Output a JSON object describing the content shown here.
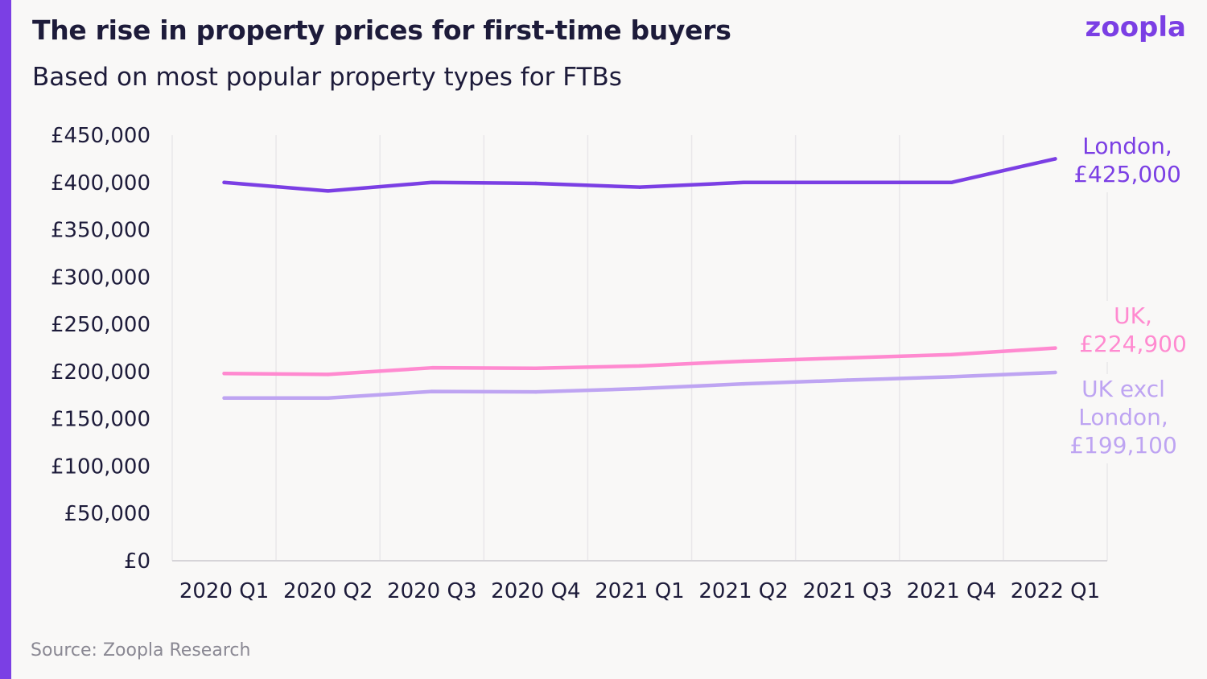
{
  "header": {
    "title": "The rise in property prices for first-time buyers",
    "subtitle": "Based on most popular property types for FTBs",
    "logo": "zoopla"
  },
  "footer": {
    "source": "Source: Zoopla Research"
  },
  "colors": {
    "accent": "#7b3fe4",
    "grid": "#e9e7ea",
    "axis": "#d6d4d8"
  },
  "chart_data": {
    "type": "line",
    "title": "The rise in property prices for first-time buyers",
    "subtitle": "Based on most popular property types for FTBs",
    "xlabel": "",
    "ylabel": "",
    "ylim": [
      0,
      450000
    ],
    "yticks": [
      {
        "value": 0,
        "label": "£0"
      },
      {
        "value": 50000,
        "label": "£50,000"
      },
      {
        "value": 100000,
        "label": "£100,000"
      },
      {
        "value": 150000,
        "label": "£150,000"
      },
      {
        "value": 200000,
        "label": "£200,000"
      },
      {
        "value": 250000,
        "label": "£250,000"
      },
      {
        "value": 300000,
        "label": "£300,000"
      },
      {
        "value": 350000,
        "label": "£350,000"
      },
      {
        "value": 400000,
        "label": "£400,000"
      },
      {
        "value": 450000,
        "label": "£450,000"
      }
    ],
    "categories": [
      "2020 Q1",
      "2020 Q2",
      "2020 Q3",
      "2020 Q4",
      "2021 Q1",
      "2021 Q2",
      "2021 Q3",
      "2021 Q4",
      "2022 Q1"
    ],
    "grid": "vertical",
    "series": [
      {
        "name": "London",
        "color": "#7b3fe4",
        "values": [
          400000,
          391000,
          400000,
          399000,
          395000,
          400000,
          400000,
          400000,
          425000
        ],
        "label_lines": [
          "London,",
          "£425,000"
        ]
      },
      {
        "name": "UK",
        "color": "#ff8ad0",
        "values": [
          198000,
          197000,
          204000,
          203500,
          206000,
          211000,
          214500,
          218000,
          224900
        ],
        "label_lines": [
          "UK,",
          "£224,900"
        ]
      },
      {
        "name": "UK excl London",
        "color": "#bea4f2",
        "values": [
          172000,
          172000,
          179000,
          178500,
          182000,
          187000,
          191000,
          194500,
          199100
        ],
        "label_lines": [
          "UK excl",
          "London,",
          "£199,100"
        ]
      }
    ]
  }
}
